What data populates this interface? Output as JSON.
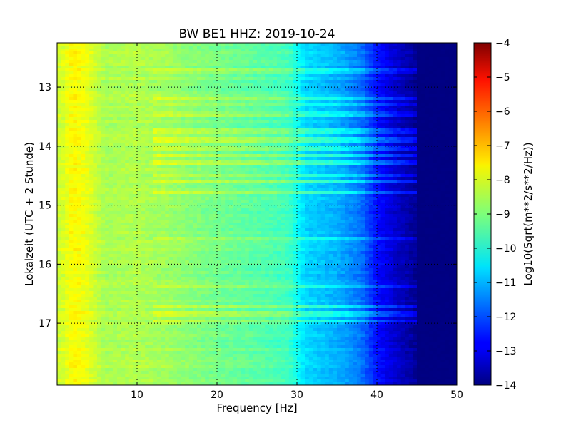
{
  "chart_data": {
    "type": "heatmap",
    "title": "BW BE1 HHZ: 2019-10-24",
    "xlabel": "Frequency [Hz]",
    "ylabel": "Lokalzeit (UTC + 2 Stunde)",
    "xlim": [
      0,
      50
    ],
    "ylim": [
      12.25,
      18.05
    ],
    "y_inverted": true,
    "x_ticks": [
      10,
      20,
      30,
      40,
      50
    ],
    "x_tick_labels": [
      "10",
      "20",
      "30",
      "40",
      "50"
    ],
    "y_ticks": [
      13,
      14,
      15,
      16,
      17
    ],
    "y_tick_labels": [
      "13",
      "14",
      "15",
      "16",
      "17"
    ],
    "grid": true,
    "grid_style": "dotted",
    "colormap": "jet",
    "colorbar": {
      "label": "Log10(Sqrt(m**2/s**2/Hz))",
      "range": [
        -14,
        -4
      ],
      "ticks": [
        -4,
        -5,
        -6,
        -7,
        -8,
        -9,
        -10,
        -11,
        -12,
        -13,
        -14
      ],
      "tick_labels": [
        "−4",
        "−5",
        "−6",
        "−7",
        "−8",
        "−9",
        "−10",
        "−11",
        "−12",
        "−13",
        "−14"
      ]
    },
    "frequency_profile": [
      {
        "freq": 0.5,
        "value": -8.2
      },
      {
        "freq": 2,
        "value": -7.7
      },
      {
        "freq": 3.5,
        "value": -7.9
      },
      {
        "freq": 6,
        "value": -8.6
      },
      {
        "freq": 10,
        "value": -8.5
      },
      {
        "freq": 14,
        "value": -8.7
      },
      {
        "freq": 18,
        "value": -9.0
      },
      {
        "freq": 24,
        "value": -9.3
      },
      {
        "freq": 29,
        "value": -9.6
      },
      {
        "freq": 31,
        "value": -10.6
      },
      {
        "freq": 35,
        "value": -11.0
      },
      {
        "freq": 38,
        "value": -11.6
      },
      {
        "freq": 40,
        "value": -12.6
      },
      {
        "freq": 43,
        "value": -13.4
      },
      {
        "freq": 46,
        "value": -14.0
      },
      {
        "freq": 50,
        "value": -14.0
      }
    ],
    "bands": [
      {
        "time": 12.73,
        "delta": 0.35
      },
      {
        "time": 13.2,
        "delta": 0.45
      },
      {
        "time": 13.3,
        "delta": 0.45
      },
      {
        "time": 13.45,
        "delta": 0.4
      },
      {
        "time": 13.75,
        "delta": 0.45
      },
      {
        "time": 13.9,
        "delta": 0.55
      },
      {
        "time": 14.05,
        "delta": 0.55
      },
      {
        "time": 14.15,
        "delta": 0.55
      },
      {
        "time": 14.27,
        "delta": 0.6
      },
      {
        "time": 14.5,
        "delta": 0.5
      },
      {
        "time": 14.6,
        "delta": 0.6
      },
      {
        "time": 14.78,
        "delta": 0.55
      },
      {
        "time": 15.55,
        "delta": 0.45
      },
      {
        "time": 16.38,
        "delta": 0.4
      },
      {
        "time": 16.72,
        "delta": 0.5
      },
      {
        "time": 16.85,
        "delta": 0.45
      },
      {
        "time": 16.97,
        "delta": 0.55
      }
    ]
  }
}
